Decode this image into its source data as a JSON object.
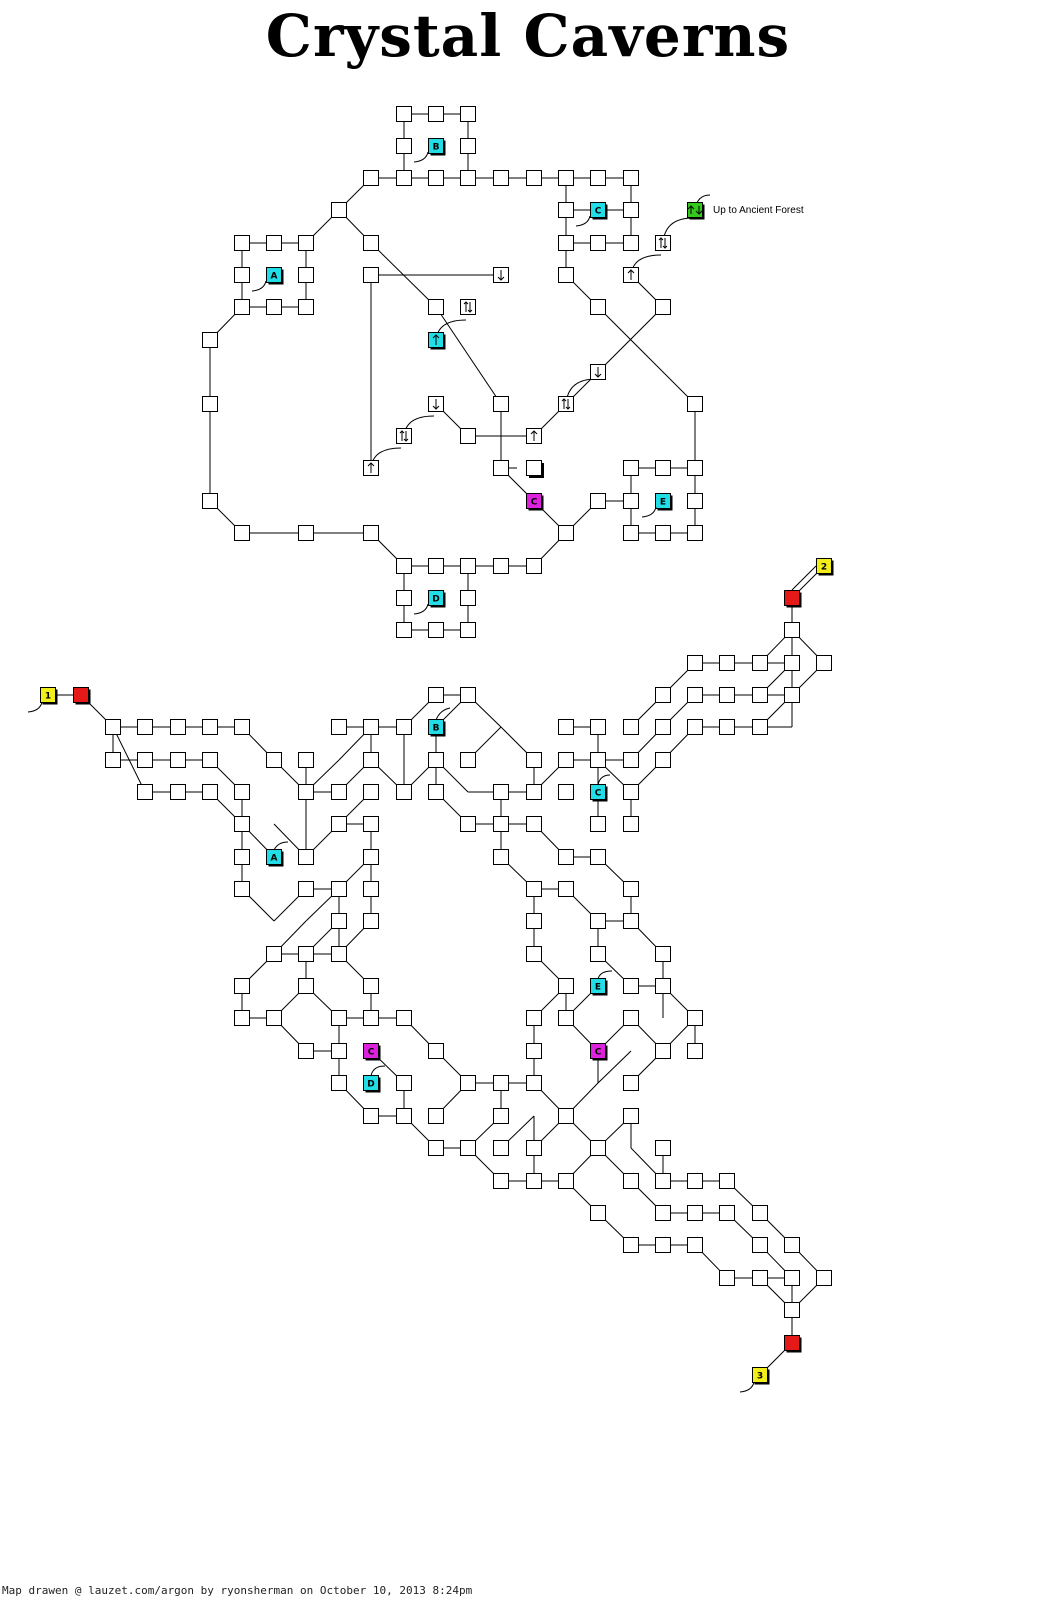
{
  "title": "Crystal Caverns",
  "footer": "Map drawen @ lauzet.com/argon by ryonsherman on October 10, 2013 8:24pm",
  "note_up": "Up to Ancient Forest",
  "colors": {
    "cyan": "#22dde6",
    "magenta": "#dd22dd",
    "yellow": "#f2ee1a",
    "red": "#e61919",
    "green": "#35c81e"
  },
  "markers": {
    "A": "A",
    "B": "B",
    "C": "C",
    "D": "D",
    "E": "E",
    "X": "C",
    "one": "1",
    "two": "2",
    "three": "3"
  }
}
